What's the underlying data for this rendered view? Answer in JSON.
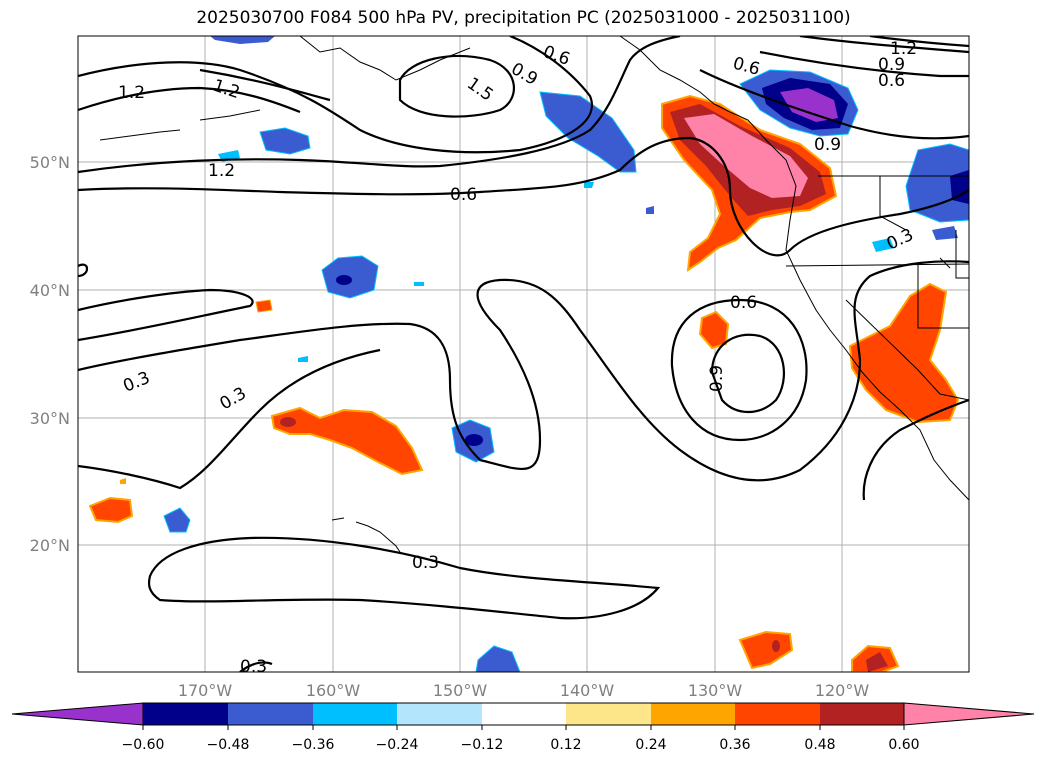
{
  "title": "2025030700 F084 500 hPa PV, precipitation PC (2025031000 - 2025031100)",
  "map": {
    "lat_labels": [
      "50°N",
      "40°N",
      "30°N",
      "20°N"
    ],
    "lon_labels": [
      "170°W",
      "160°W",
      "150°W",
      "140°W",
      "130°W",
      "120°W"
    ],
    "contour_labels": [
      "1.2",
      "1.2",
      "1.2",
      "1.5",
      "0.9",
      "0.6",
      "0.6",
      "1.2",
      "0.9",
      "0.6",
      "0.9",
      "0.6",
      "0.3",
      "0.6",
      "0.9",
      "0.3",
      "0.3",
      "0.3",
      "0.3"
    ],
    "colors": {
      "pos_light": "#fde68a",
      "pos_orange": "#ffa500",
      "pos_redorange": "#ff4500",
      "pos_darkred": "#b22222",
      "pos_pink": "#ff82a9",
      "neg_purple": "#9932cc",
      "neg_navy": "#00008b",
      "neg_blue": "#3b5bd0",
      "neg_sky": "#00bfff",
      "neg_light": "#b3e5fc"
    }
  },
  "colorbar": {
    "ticks": [
      "−0.60",
      "−0.48",
      "−0.36",
      "−0.24",
      "−0.12",
      "0.12",
      "0.24",
      "0.36",
      "0.48",
      "0.60"
    ],
    "colors": [
      "#9932cc",
      "#00008b",
      "#3b5bd0",
      "#00bfff",
      "#b3e5fc",
      "#ffffff",
      "#fde68a",
      "#ffa500",
      "#ff4500",
      "#b22222",
      "#ff82a9"
    ]
  }
}
